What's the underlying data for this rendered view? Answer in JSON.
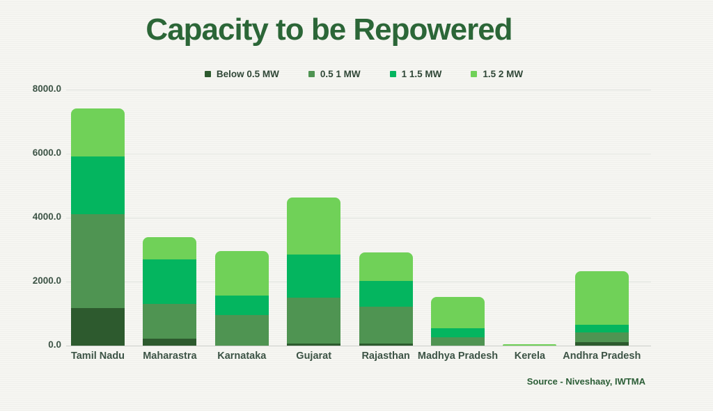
{
  "title": "Capacity to be Repowered",
  "source": "Source - Niveshaay, IWTMA",
  "colors": {
    "background": "#f4f4f0",
    "title_text": "#2b6637",
    "axis_text": "#3c5345",
    "legend_text": "#2f4636",
    "gridline": "#e2e5e0",
    "axis_line": "#c7cbc6",
    "source_text": "#2b5d36"
  },
  "chart_data": {
    "type": "bar",
    "stacked": true,
    "title": "Capacity to be Repowered",
    "xlabel": "",
    "ylabel": "",
    "ylim": [
      0,
      8000
    ],
    "yticks": [
      0,
      2000,
      4000,
      6000,
      8000
    ],
    "ytick_labels": [
      "0.0",
      "2000.0",
      "4000.0",
      "6000.0",
      "8000.0"
    ],
    "grid": true,
    "legend_position": "top",
    "categories": [
      "Tamil Nadu",
      "Maharastra",
      "Karnataka",
      "Gujarat",
      "Rajasthan",
      "Madhya Pradesh",
      "Kerela",
      "Andhra Pradesh"
    ],
    "series": [
      {
        "name": "Below 0.5 MW",
        "color": "#2d5a2e",
        "values": [
          1170,
          220,
          0,
          70,
          60,
          0,
          0,
          100
        ]
      },
      {
        "name": "0.5 1 MW",
        "color": "#4f9452",
        "values": [
          2930,
          1080,
          960,
          1430,
          1160,
          260,
          0,
          310
        ]
      },
      {
        "name": "1 1.5 MW",
        "color": "#04b55f",
        "values": [
          1810,
          1400,
          610,
          1350,
          800,
          290,
          0,
          240
        ]
      },
      {
        "name": "1.5 2 MW",
        "color": "#70d158",
        "values": [
          1500,
          690,
          1390,
          1780,
          890,
          970,
          40,
          1680
        ]
      }
    ],
    "totals": [
      7410,
      3390,
      2960,
      4630,
      2910,
      1520,
      40,
      2330
    ]
  }
}
